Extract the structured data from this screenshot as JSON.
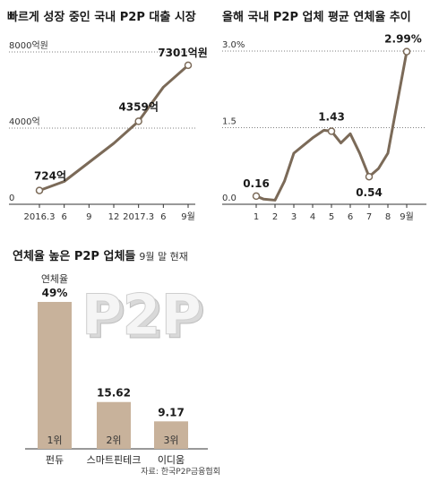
{
  "chart_data": [
    {
      "type": "line",
      "title": "빠르게 성장 중인 국내 P2P 대출 시장",
      "x": [
        "2016.3",
        "6",
        "9",
        "12",
        "2017.3",
        "6",
        "9월"
      ],
      "y_ticks": [
        "8000억원",
        "4000억",
        "0"
      ],
      "ylim": [
        0,
        8000
      ],
      "series": [
        {
          "values": [
            724,
            1200,
            2200,
            3200,
            4359,
            6150,
            7301
          ]
        }
      ],
      "labels": [
        {
          "index": 0,
          "text": "724억"
        },
        {
          "index": 4,
          "text": "4359억"
        },
        {
          "index": 6,
          "text": "7301억원"
        }
      ],
      "color": "#7b6a58"
    },
    {
      "type": "line",
      "title": "올해 국내 P2P 업체 평균 연체율 추이",
      "x_labels": [
        "1",
        "2",
        "3",
        "4",
        "5",
        "6",
        "7",
        "8",
        "9월"
      ],
      "x": [
        1,
        1.4,
        2,
        2.5,
        3,
        3.5,
        4,
        4.6,
        5,
        5.5,
        6,
        6.5,
        7,
        7.5,
        8,
        9
      ],
      "y_ticks": [
        "3.0%",
        "1.5",
        "0.0"
      ],
      "ylim": [
        0,
        3.0
      ],
      "series": [
        {
          "values": [
            0.16,
            0.1,
            0.08,
            0.45,
            1.0,
            1.15,
            1.3,
            1.45,
            1.43,
            1.2,
            1.38,
            1.0,
            0.54,
            0.7,
            1.0,
            2.99
          ]
        }
      ],
      "labels": [
        {
          "index": 0,
          "text": "0.16"
        },
        {
          "index": 8,
          "text": "1.43"
        },
        {
          "index": 12,
          "text": "0.54"
        },
        {
          "index": 15,
          "text": "2.99%"
        }
      ],
      "color": "#7b6a58"
    },
    {
      "type": "bar",
      "title": "연체율 높은 P2P 업체들",
      "subtitle": "9월 말 현재",
      "unit_label": "연체율",
      "categories": [
        "펀듀",
        "스마트핀테크",
        "이디움"
      ],
      "ranks": [
        "1위",
        "2위",
        "3위"
      ],
      "values": [
        49,
        15.62,
        9.17
      ],
      "value_labels": [
        "49%",
        "15.62",
        "9.17"
      ],
      "ylim": [
        0,
        49
      ],
      "source": "자료: 한국P2P금융협회",
      "background_text": "P2P",
      "color": "#c8b29b"
    }
  ]
}
